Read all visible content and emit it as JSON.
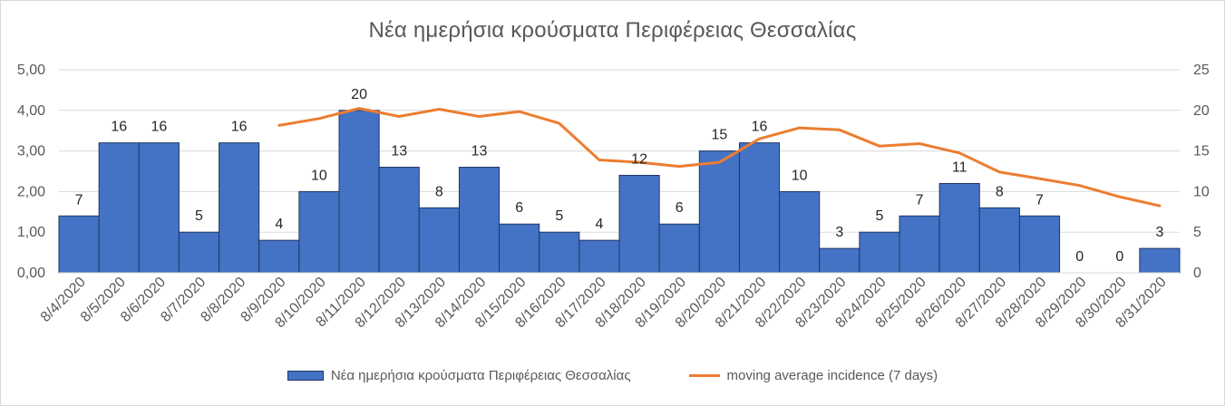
{
  "chart_data": {
    "type": "bar",
    "title": "Νέα ημερήσια κρούσματα Περιφέρειας Θεσσαλίας",
    "categories": [
      "8/4/2020",
      "8/5/2020",
      "8/6/2020",
      "8/7/2020",
      "8/8/2020",
      "8/9/2020",
      "8/10/2020",
      "8/11/2020",
      "8/12/2020",
      "8/13/2020",
      "8/14/2020",
      "8/15/2020",
      "8/16/2020",
      "8/17/2020",
      "8/18/2020",
      "8/19/2020",
      "8/20/2020",
      "8/21/2020",
      "8/22/2020",
      "8/23/2020",
      "8/24/2020",
      "8/25/2020",
      "8/26/2020",
      "8/27/2020",
      "8/28/2020",
      "8/29/2020",
      "8/30/2020",
      "8/31/2020"
    ],
    "series": [
      {
        "name": "Νέα ημερήσια κρούσματα Περιφέρειας Θεσσαλίας",
        "type": "bar",
        "axis": "right",
        "color": "#4472c4",
        "values": [
          7,
          16,
          16,
          5,
          16,
          4,
          10,
          20,
          13,
          8,
          13,
          6,
          5,
          4,
          12,
          6,
          15,
          16,
          10,
          3,
          5,
          7,
          11,
          8,
          7,
          0,
          0,
          3
        ],
        "data_labels": [
          "7",
          "16",
          "16",
          "5",
          "16",
          "4",
          "10",
          "20",
          "13",
          "8",
          "13",
          "6",
          "5",
          "4",
          "12",
          "6",
          "15",
          "16",
          "10",
          "3",
          "5",
          "7",
          "11",
          "8",
          "7",
          "0",
          "0",
          "3"
        ]
      },
      {
        "name": "moving average incidence (7 days)",
        "type": "line",
        "axis": "left",
        "color": "#ed7d31",
        "values": [
          null,
          null,
          null,
          null,
          null,
          3.63,
          3.8,
          4.05,
          3.85,
          4.03,
          3.85,
          3.97,
          3.68,
          2.78,
          2.72,
          2.62,
          2.72,
          3.3,
          3.57,
          3.52,
          3.12,
          3.18,
          2.95,
          2.48,
          2.32,
          2.15,
          1.87,
          1.65
        ]
      }
    ],
    "y_left": {
      "ylim": [
        0,
        5
      ],
      "ticks": [
        "0,00",
        "1,00",
        "2,00",
        "3,00",
        "4,00",
        "5,00"
      ]
    },
    "y_right": {
      "ylim": [
        0,
        25
      ],
      "ticks": [
        "0",
        "5",
        "10",
        "15",
        "20",
        "25"
      ]
    },
    "grid": true,
    "legend_position": "bottom"
  }
}
